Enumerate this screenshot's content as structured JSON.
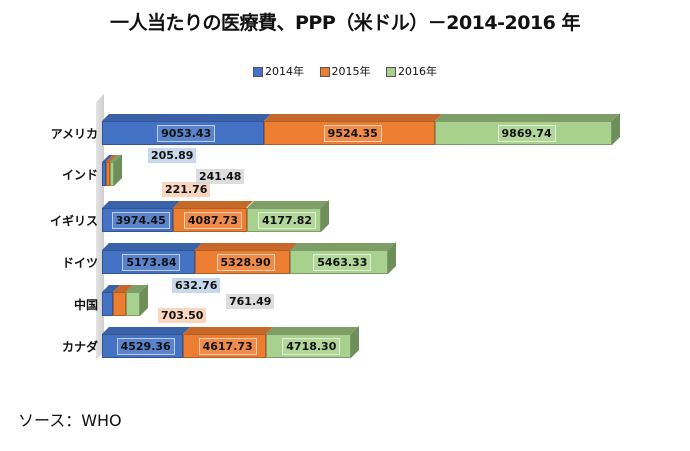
{
  "title": "一人当たりの医療費、PPP（米ドル）－2014-2016 年",
  "source": "ソース：WHO",
  "colors": {
    "2014": "#4472C4",
    "2015": "#ED7D31",
    "2016": "#A9D18E"
  },
  "legend": [
    {
      "label": "2014年",
      "color": "#4472C4"
    },
    {
      "label": "2015年",
      "color": "#ED7D31"
    },
    {
      "label": "2016年",
      "color": "#A9D18E"
    }
  ],
  "chart_data": {
    "type": "bar",
    "orientation": "horizontal",
    "stacked": true,
    "title": "一人当たりの医療費、PPP（米ドル）－2014-2016 年",
    "categories": [
      "アメリカ",
      "インド",
      "イギリス",
      "ドイツ",
      "中国",
      "カナダ"
    ],
    "series": [
      {
        "name": "2014年",
        "values": [
          9053.43,
          205.89,
          3974.45,
          5173.84,
          632.76,
          4529.36
        ]
      },
      {
        "name": "2015年",
        "values": [
          9524.35,
          221.76,
          4087.73,
          5328.9,
          703.5,
          4617.73
        ]
      },
      {
        "name": "2016年",
        "values": [
          9869.74,
          241.48,
          4177.82,
          5463.33,
          761.49,
          4718.3
        ]
      }
    ],
    "legend_position": "top",
    "grid": false,
    "xlabel": "",
    "ylabel": "",
    "annotation": "ソース：WHO"
  }
}
